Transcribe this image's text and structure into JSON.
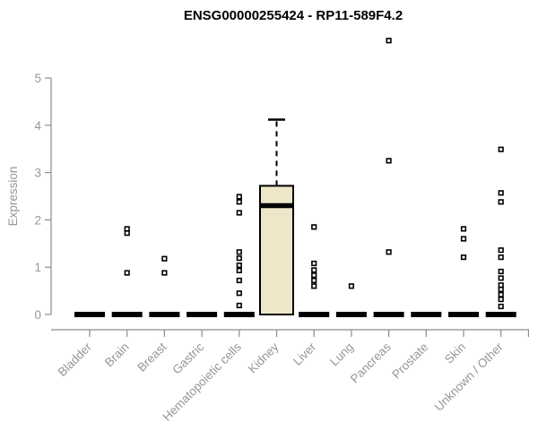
{
  "chart_data": {
    "type": "boxplot",
    "title": "ENSG00000255424 - RP11-589F4.2",
    "ylabel": "Expression",
    "xlabel": "",
    "ylim": [
      0,
      5
    ],
    "yticks": [
      0,
      1,
      2,
      3,
      4,
      5
    ],
    "grid": false,
    "legend": false,
    "x_label_rotation": -45,
    "categories": [
      "Bladder",
      "Brain",
      "Breast",
      "Gastric",
      "Hematopoietic cells",
      "Kidney",
      "Liver",
      "Lung",
      "Pancreas",
      "Prostate",
      "Skin",
      "Unknown / Other"
    ],
    "series": [
      {
        "category": "Bladder",
        "whisker_low": 0,
        "q1": 0,
        "median": 0,
        "q3": 0,
        "whisker_high": 0,
        "outliers": []
      },
      {
        "category": "Brain",
        "whisker_low": 0,
        "q1": 0,
        "median": 0,
        "q3": 0,
        "whisker_high": 0,
        "outliers": [
          1.81,
          1.72,
          0.88
        ]
      },
      {
        "category": "Breast",
        "whisker_low": 0,
        "q1": 0,
        "median": 0,
        "q3": 0,
        "whisker_high": 0,
        "outliers": [
          1.18,
          0.88
        ]
      },
      {
        "category": "Gastric",
        "whisker_low": 0,
        "q1": 0,
        "median": 0,
        "q3": 0,
        "whisker_high": 0,
        "outliers": []
      },
      {
        "category": "Hematopoietic cells",
        "whisker_low": 0,
        "q1": 0,
        "median": 0,
        "q3": 0,
        "whisker_high": 0,
        "outliers": [
          2.49,
          2.38,
          2.15,
          1.32,
          1.19,
          1.04,
          0.93,
          0.72,
          0.45,
          0.19
        ]
      },
      {
        "category": "Kidney",
        "whisker_low": 0,
        "q1": 0,
        "median": 2.3,
        "q3": 2.72,
        "whisker_high": 4.12,
        "outliers": []
      },
      {
        "category": "Liver",
        "whisker_low": 0,
        "q1": 0,
        "median": 0,
        "q3": 0,
        "whisker_high": 0,
        "outliers": [
          1.85,
          1.08,
          0.94,
          0.83,
          0.72,
          0.6
        ]
      },
      {
        "category": "Lung",
        "whisker_low": 0,
        "q1": 0,
        "median": 0,
        "q3": 0,
        "whisker_high": 0,
        "outliers": [
          0.6
        ]
      },
      {
        "category": "Pancreas",
        "whisker_low": 0,
        "q1": 0,
        "median": 0,
        "q3": 0,
        "whisker_high": 0,
        "outliers": [
          5.79,
          3.25,
          1.32
        ]
      },
      {
        "category": "Prostate",
        "whisker_low": 0,
        "q1": 0,
        "median": 0,
        "q3": 0,
        "whisker_high": 0,
        "outliers": []
      },
      {
        "category": "Skin",
        "whisker_low": 0,
        "q1": 0,
        "median": 0,
        "q3": 0,
        "whisker_high": 0,
        "outliers": [
          1.81,
          1.6,
          1.21
        ]
      },
      {
        "category": "Unknown / Other",
        "whisker_low": 0,
        "q1": 0,
        "median": 0,
        "q3": 0,
        "whisker_high": 0,
        "outliers": [
          3.49,
          2.57,
          2.38,
          1.36,
          1.21,
          0.91,
          0.77,
          0.62,
          0.53,
          0.42,
          0.32,
          0.17
        ]
      }
    ],
    "colors": {
      "box_fill": "#EDE6C8",
      "box_stroke": "#000000",
      "median": "#000000",
      "outlier_stroke": "#000000",
      "outlier_fill": "#FFFFFF",
      "axis_line": "#8C8C8C",
      "axis_text": "#969696",
      "title": "#000000",
      "background": "#FFFFFF"
    }
  }
}
